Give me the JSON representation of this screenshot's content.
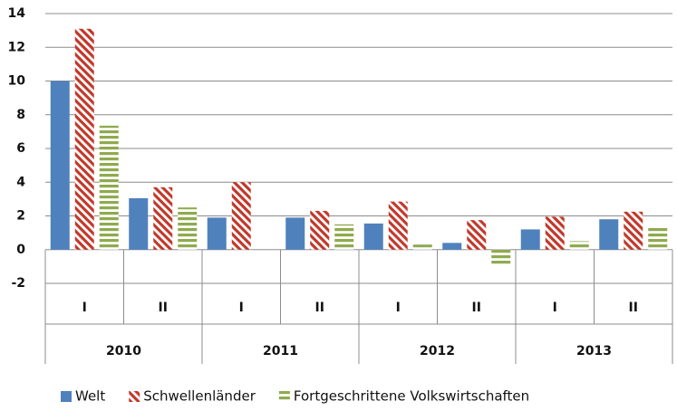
{
  "chart_data": {
    "type": "bar",
    "categories": [
      "I",
      "II",
      "I",
      "II",
      "I",
      "II",
      "I",
      "II"
    ],
    "category_groups": [
      "2010",
      "2011",
      "2012",
      "2013"
    ],
    "series": [
      {
        "name": "Welt",
        "color": "#4f81bd",
        "pattern": "solid",
        "values": [
          10.0,
          3.05,
          1.9,
          1.9,
          1.55,
          0.4,
          1.2,
          1.8
        ]
      },
      {
        "name": "Schwellenländer",
        "color": "#c0392b",
        "pattern": "diagonal",
        "values": [
          13.1,
          3.7,
          4.0,
          2.3,
          2.85,
          1.75,
          1.95,
          2.25
        ]
      },
      {
        "name": "Fortgeschrittene Volkswirtschaften",
        "color": "#8faa4e",
        "pattern": "horizontal",
        "values": [
          7.35,
          2.5,
          0,
          1.5,
          0.3,
          -0.9,
          0.5,
          1.3
        ]
      }
    ],
    "ylim": [
      -2,
      14
    ],
    "yticks": [
      -2,
      0,
      2,
      4,
      6,
      8,
      10,
      12,
      14
    ],
    "grid": true,
    "legend": "bottom"
  }
}
